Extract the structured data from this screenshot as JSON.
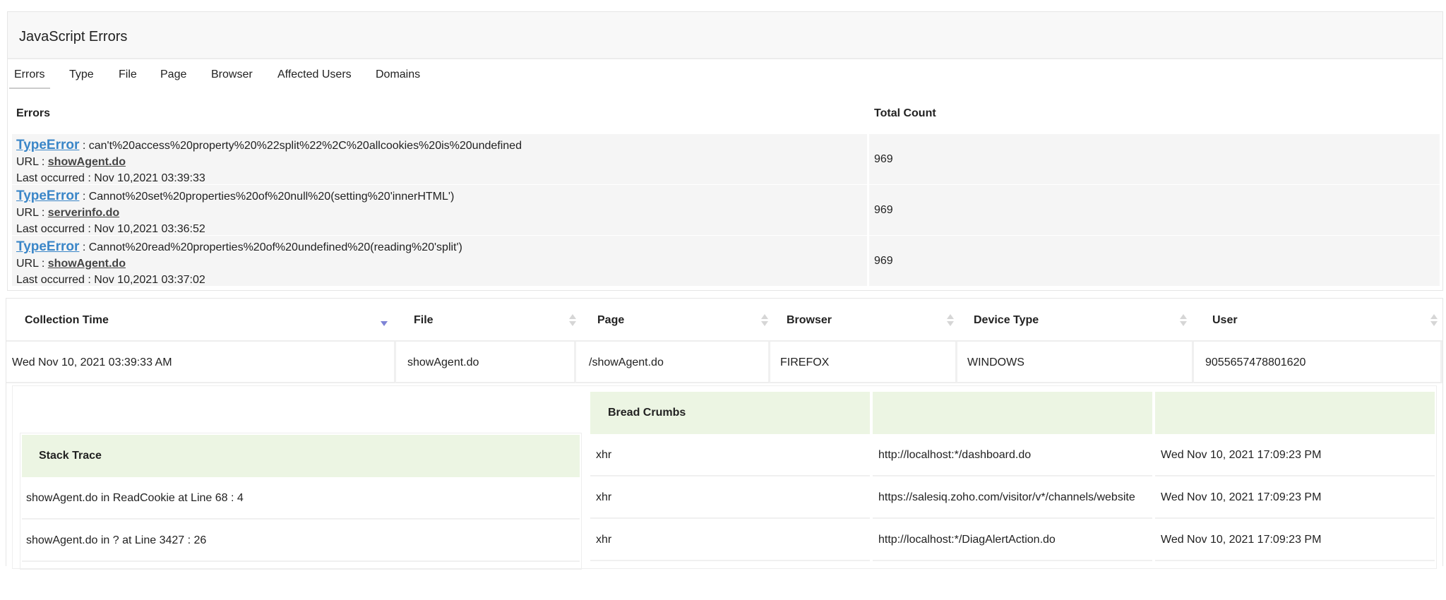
{
  "title": "JavaScript Errors",
  "tabs": [
    "Errors",
    "Type",
    "File",
    "Page",
    "Browser",
    "Affected Users",
    "Domains"
  ],
  "errors_table": {
    "headers": [
      "Errors",
      "Total Count"
    ],
    "url_label": "URL :",
    "last_label": "Last occurred :",
    "rows": [
      {
        "type": "TypeError",
        "message": ": can't%20access%20property%20%22split%22%2C%20allcookies%20is%20undefined",
        "url": "showAgent.do",
        "last": "Nov 10,2021 03:39:33",
        "count": "969"
      },
      {
        "type": "TypeError",
        "message": ": Cannot%20set%20properties%20of%20null%20(setting%20'innerHTML')",
        "url": "serverinfo.do",
        "last": "Nov 10,2021 03:36:52",
        "count": "969"
      },
      {
        "type": "TypeError",
        "message": ": Cannot%20read%20properties%20of%20undefined%20(reading%20'split')",
        "url": "showAgent.do",
        "last": "Nov 10,2021 03:37:02",
        "count": "969"
      }
    ]
  },
  "details_table": {
    "headers": [
      "Collection Time",
      "File",
      "Page",
      "Browser",
      "Device Type",
      "User"
    ],
    "sorted_column": "Collection Time",
    "sort_direction": "descending",
    "row": [
      "Wed Nov 10, 2021 03:39:33 AM",
      "showAgent.do",
      "/showAgent.do",
      "FIREFOX",
      "WINDOWS",
      "9055657478801620"
    ]
  },
  "stack_trace": {
    "header": "Stack Trace",
    "rows": [
      "showAgent.do in ReadCookie at Line 68 : 4",
      "showAgent.do in ? at Line 3427 : 26"
    ]
  },
  "bread_crumbs": {
    "header": "Bread Crumbs",
    "rows": [
      [
        "xhr",
        "http://localhost:*/dashboard.do",
        "Wed Nov 10, 2021 17:09:23 PM"
      ],
      [
        "xhr",
        "https://salesiq.zoho.com/visitor/v*/channels/website",
        "Wed Nov 10, 2021 17:09:23 PM"
      ],
      [
        "xhr",
        "http://localhost:*/DiagAlertAction.do",
        "Wed Nov 10, 2021 17:09:23 PM"
      ]
    ]
  },
  "colors": {
    "link": "#3a86c8",
    "header_green": "#ecf5e3",
    "sort_active": "#7e84d6"
  }
}
